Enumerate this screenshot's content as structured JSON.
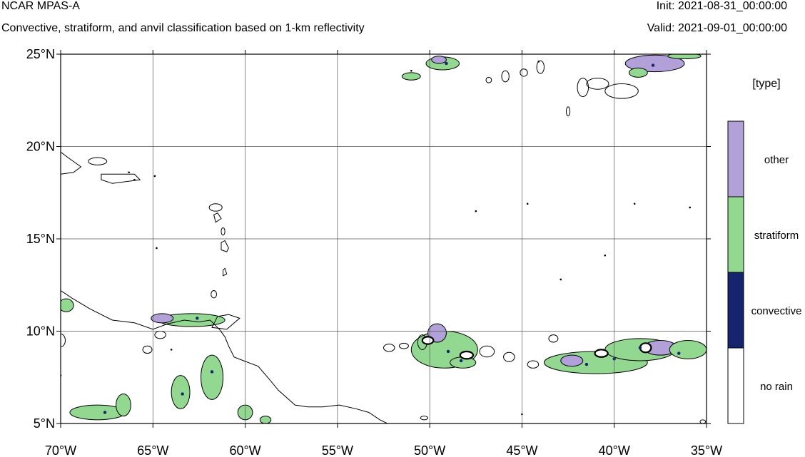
{
  "header": {
    "model_name": "NCAR MPAS-A",
    "description": "Convective, stratiform, and anvil classification based on 1-km reflectivity",
    "init": "Init: 2021-08-31_00:00:00",
    "valid": "Valid: 2021-09-01_00:00:00"
  },
  "map": {
    "lon_range": [
      -70,
      -35
    ],
    "lat_range": [
      5,
      25
    ],
    "lon_ticks": [
      {
        "value": -70,
        "label": "70°W"
      },
      {
        "value": -65,
        "label": "65°W"
      },
      {
        "value": -60,
        "label": "60°W"
      },
      {
        "value": -55,
        "label": "55°W"
      },
      {
        "value": -50,
        "label": "50°W"
      },
      {
        "value": -45,
        "label": "45°W"
      },
      {
        "value": -40,
        "label": "40°W"
      },
      {
        "value": -35,
        "label": "35°W"
      }
    ],
    "lat_ticks": [
      {
        "value": 25,
        "label": "25°N"
      },
      {
        "value": 20,
        "label": "20°N"
      },
      {
        "value": 15,
        "label": "15°N"
      },
      {
        "value": 10,
        "label": "10°N"
      },
      {
        "value": 5,
        "label": "5°N"
      }
    ],
    "gridlines": true,
    "colors": {
      "stratiform": "#93d890",
      "other": "#b2a1d9",
      "convective": "#16236e",
      "no_rain": "#ffffff"
    },
    "coastline": [
      [
        -70,
        19.7
      ],
      [
        -69.6,
        19.4
      ],
      [
        -68.9,
        18.9
      ],
      [
        -69.3,
        18.6
      ],
      [
        -70,
        18.5
      ]
    ],
    "coastline_sa": [
      [
        -70,
        12.2
      ],
      [
        -69.4,
        11.8
      ],
      [
        -68.4,
        11.2
      ],
      [
        -67.2,
        10.6
      ],
      [
        -66.0,
        10.45
      ],
      [
        -65.0,
        10.1
      ],
      [
        -64.2,
        10.4
      ],
      [
        -63.3,
        10.6
      ],
      [
        -62.5,
        10.5
      ],
      [
        -61.9,
        10.6
      ],
      [
        -61.4,
        10.1
      ],
      [
        -61.1,
        9.7
      ],
      [
        -60.9,
        9.2
      ],
      [
        -60.6,
        8.6
      ],
      [
        -60.1,
        8.4
      ],
      [
        -59.3,
        8.1
      ],
      [
        -58.7,
        7.4
      ],
      [
        -58.2,
        6.8
      ],
      [
        -57.3,
        6.0
      ],
      [
        -56.6,
        5.9
      ],
      [
        -55.8,
        5.9
      ],
      [
        -54.9,
        6.0
      ],
      [
        -54.0,
        5.8
      ],
      [
        -53.3,
        5.6
      ],
      [
        -52.7,
        5.2
      ],
      [
        -52.3,
        5.0
      ]
    ],
    "islands": [
      [
        [
          -67.8,
          18.5
        ],
        [
          -66.0,
          18.5
        ],
        [
          -65.7,
          18.2
        ],
        [
          -67.2,
          18.0
        ],
        [
          -67.8,
          18.2
        ]
      ],
      [
        [
          -60.3,
          10.7
        ],
        [
          -60.9,
          10.9
        ],
        [
          -61.5,
          10.8
        ],
        [
          -61.8,
          10.2
        ],
        [
          -61.0,
          10.1
        ]
      ],
      [
        [
          -61.3,
          14.8
        ],
        [
          -61.1,
          14.9
        ],
        [
          -60.9,
          14.5
        ],
        [
          -61.0,
          14.3
        ],
        [
          -61.3,
          14.4
        ]
      ],
      [
        [
          -61.7,
          16.3
        ],
        [
          -61.5,
          16.4
        ],
        [
          -61.3,
          16.1
        ],
        [
          -61.6,
          15.9
        ]
      ],
      [
        [
          -61.2,
          13.3
        ],
        [
          -61.1,
          13.4
        ],
        [
          -61.0,
          13.1
        ],
        [
          -61.2,
          13.0
        ]
      ]
    ],
    "cells": [
      {
        "lon": -62.9,
        "lat": 10.6,
        "rx": 1.8,
        "ry": 0.35,
        "type": "stratiform"
      },
      {
        "lon": -64.5,
        "lat": 10.7,
        "rx": 0.6,
        "ry": 0.25,
        "type": "other"
      },
      {
        "lon": -69.7,
        "lat": 11.4,
        "rx": 0.4,
        "ry": 0.35,
        "type": "stratiform"
      },
      {
        "lon": -68.0,
        "lat": 5.6,
        "rx": 1.5,
        "ry": 0.4,
        "type": "stratiform"
      },
      {
        "lon": -66.6,
        "lat": 6.0,
        "rx": 0.4,
        "ry": 0.6,
        "type": "stratiform"
      },
      {
        "lon": -63.5,
        "lat": 6.7,
        "rx": 0.5,
        "ry": 0.9,
        "type": "stratiform"
      },
      {
        "lon": -61.8,
        "lat": 7.5,
        "rx": 0.6,
        "ry": 1.2,
        "type": "stratiform"
      },
      {
        "lon": -60.0,
        "lat": 5.6,
        "rx": 0.4,
        "ry": 0.4,
        "type": "stratiform"
      },
      {
        "lon": -58.9,
        "lat": 5.2,
        "rx": 0.3,
        "ry": 0.2,
        "type": "stratiform"
      },
      {
        "lon": -49.2,
        "lat": 9.0,
        "rx": 1.8,
        "ry": 1.0,
        "type": "stratiform"
      },
      {
        "lon": -48.2,
        "lat": 8.3,
        "rx": 0.7,
        "ry": 0.3,
        "type": "stratiform"
      },
      {
        "lon": -49.6,
        "lat": 9.9,
        "rx": 0.5,
        "ry": 0.5,
        "type": "other"
      },
      {
        "lon": -41.0,
        "lat": 8.3,
        "rx": 2.8,
        "ry": 0.6,
        "type": "stratiform"
      },
      {
        "lon": -38.6,
        "lat": 9.0,
        "rx": 1.9,
        "ry": 0.6,
        "type": "stratiform"
      },
      {
        "lon": -37.5,
        "lat": 9.1,
        "rx": 0.9,
        "ry": 0.4,
        "type": "other"
      },
      {
        "lon": -42.3,
        "lat": 8.4,
        "rx": 0.6,
        "ry": 0.3,
        "type": "other"
      },
      {
        "lon": -36.0,
        "lat": 9.0,
        "rx": 1.0,
        "ry": 0.5,
        "type": "stratiform"
      },
      {
        "lon": -49.3,
        "lat": 24.5,
        "rx": 0.9,
        "ry": 0.35,
        "type": "stratiform"
      },
      {
        "lon": -49.5,
        "lat": 24.7,
        "rx": 0.4,
        "ry": 0.2,
        "type": "other"
      },
      {
        "lon": -51.0,
        "lat": 23.8,
        "rx": 0.5,
        "ry": 0.2,
        "type": "stratiform"
      },
      {
        "lon": -37.8,
        "lat": 24.5,
        "rx": 1.6,
        "ry": 0.45,
        "type": "other"
      },
      {
        "lon": -38.7,
        "lat": 24.0,
        "rx": 0.5,
        "ry": 0.25,
        "type": "stratiform"
      },
      {
        "lon": -36.2,
        "lat": 24.9,
        "rx": 0.9,
        "ry": 0.15,
        "type": "stratiform"
      }
    ],
    "convective_cells": [
      {
        "lon": -49.0,
        "lat": 8.9
      },
      {
        "lon": -48.3,
        "lat": 8.4
      },
      {
        "lon": -41.5,
        "lat": 8.2
      },
      {
        "lon": -40.0,
        "lat": 8.5
      },
      {
        "lon": -38.6,
        "lat": 9.1
      },
      {
        "lon": -36.5,
        "lat": 8.8
      },
      {
        "lon": -61.8,
        "lat": 7.8
      },
      {
        "lon": -63.4,
        "lat": 6.6
      },
      {
        "lon": -67.6,
        "lat": 5.6
      },
      {
        "lon": -62.6,
        "lat": 10.7
      },
      {
        "lon": -49.1,
        "lat": 24.5
      },
      {
        "lon": -37.9,
        "lat": 24.4
      }
    ],
    "outline_blobs": [
      {
        "lon": -46.8,
        "lat": 23.6,
        "rx": 0.15,
        "ry": 0.15
      },
      {
        "lon": -45.9,
        "lat": 23.8,
        "rx": 0.2,
        "ry": 0.3
      },
      {
        "lon": -44.9,
        "lat": 24.0,
        "rx": 0.2,
        "ry": 0.2
      },
      {
        "lon": -44.0,
        "lat": 24.3,
        "rx": 0.2,
        "ry": 0.35
      },
      {
        "lon": -41.7,
        "lat": 23.2,
        "rx": 0.3,
        "ry": 0.5
      },
      {
        "lon": -40.9,
        "lat": 23.4,
        "rx": 0.6,
        "ry": 0.3
      },
      {
        "lon": -39.6,
        "lat": 23.0,
        "rx": 0.9,
        "ry": 0.4
      },
      {
        "lon": -42.5,
        "lat": 21.9,
        "rx": 0.1,
        "ry": 0.25
      },
      {
        "lon": -68.0,
        "lat": 19.2,
        "rx": 0.5,
        "ry": 0.2
      },
      {
        "lon": -61.6,
        "lat": 16.7,
        "rx": 0.35,
        "ry": 0.2
      },
      {
        "lon": -61.2,
        "lat": 15.4,
        "rx": 0.1,
        "ry": 0.2
      },
      {
        "lon": -70.0,
        "lat": 9.5,
        "rx": 0.25,
        "ry": 0.35
      },
      {
        "lon": -64.6,
        "lat": 9.8,
        "rx": 0.3,
        "ry": 0.2
      },
      {
        "lon": -52.2,
        "lat": 9.1,
        "rx": 0.3,
        "ry": 0.2
      },
      {
        "lon": -51.4,
        "lat": 9.2,
        "rx": 0.25,
        "ry": 0.15
      },
      {
        "lon": -50.4,
        "lat": 9.4,
        "rx": 0.25,
        "ry": 0.4
      },
      {
        "lon": -46.9,
        "lat": 8.9,
        "rx": 0.4,
        "ry": 0.3
      },
      {
        "lon": -45.7,
        "lat": 8.6,
        "rx": 0.3,
        "ry": 0.25
      },
      {
        "lon": -44.4,
        "lat": 8.2,
        "rx": 0.3,
        "ry": 0.2
      },
      {
        "lon": -43.3,
        "lat": 9.6,
        "rx": 0.25,
        "ry": 0.2
      },
      {
        "lon": -61.7,
        "lat": 12.0,
        "rx": 0.15,
        "ry": 0.2
      },
      {
        "lon": -65.3,
        "lat": 9.0,
        "rx": 0.25,
        "ry": 0.2
      },
      {
        "lon": -35.2,
        "lat": 5.1,
        "rx": 0.15,
        "ry": 0.1
      },
      {
        "lon": -50.3,
        "lat": 5.3,
        "rx": 0.2,
        "ry": 0.1
      }
    ],
    "ring_cells": [
      {
        "lon": -50.1,
        "lat": 9.5,
        "rx": 0.3,
        "ry": 0.2
      },
      {
        "lon": -48.0,
        "lat": 8.7,
        "rx": 0.35,
        "ry": 0.2
      },
      {
        "lon": -40.7,
        "lat": 8.8,
        "rx": 0.35,
        "ry": 0.2
      },
      {
        "lon": -38.3,
        "lat": 9.1,
        "rx": 0.3,
        "ry": 0.25
      }
    ],
    "dots": [
      [
        -47.5,
        16.5
      ],
      [
        -44.7,
        16.9
      ],
      [
        -42.9,
        12.8
      ],
      [
        -40.5,
        14.1
      ],
      [
        -38.9,
        16.9
      ],
      [
        -35.9,
        16.7
      ],
      [
        -64.8,
        14.5
      ],
      [
        -66.0,
        18.2
      ],
      [
        -64.9,
        18.4
      ],
      [
        -66.3,
        18.6
      ],
      [
        -64.0,
        9.0
      ],
      [
        -70.0,
        7.6
      ],
      [
        -51.0,
        24.1
      ],
      [
        -44.1,
        24.6
      ],
      [
        -45.0,
        5.5
      ]
    ]
  },
  "legend": {
    "title": "[type]",
    "items": [
      {
        "label": "other",
        "color": "#b2a1d9"
      },
      {
        "label": "stratiform",
        "color": "#93d890"
      },
      {
        "label": "convective",
        "color": "#16236e"
      },
      {
        "label": "no rain",
        "color": "#ffffff"
      }
    ]
  }
}
